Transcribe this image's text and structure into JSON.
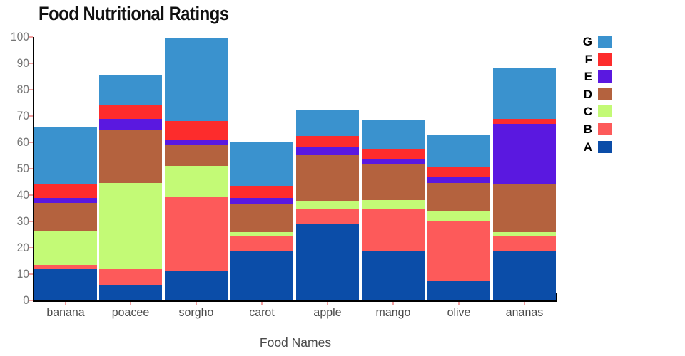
{
  "chart_data": {
    "type": "bar",
    "stacked": true,
    "title": "Food Nutritional Ratings",
    "xlabel": "Food Names",
    "ylabel": "",
    "ylim": [
      0,
      100
    ],
    "yticks": [
      0,
      10,
      20,
      30,
      40,
      50,
      60,
      70,
      80,
      90,
      100
    ],
    "grid": false,
    "legend_position": "right",
    "legend_order_top_to_bottom": [
      "G",
      "F",
      "E",
      "D",
      "C",
      "B",
      "A"
    ],
    "categories": [
      "banana",
      "poacee",
      "sorgho",
      "carot",
      "apple",
      "mango",
      "olive",
      "ananas"
    ],
    "series": [
      {
        "name": "A",
        "color": "#0b4da8",
        "values": [
          12,
          6,
          11,
          19,
          29,
          19,
          7.5,
          19
        ]
      },
      {
        "name": "B",
        "color": "#fd5a5a",
        "values": [
          1.5,
          6,
          28.5,
          5.5,
          6,
          15.5,
          22.5,
          5.5
        ]
      },
      {
        "name": "C",
        "color": "#c3fa76",
        "values": [
          13,
          32.5,
          11.5,
          1.5,
          2.5,
          3.5,
          4,
          1.5
        ]
      },
      {
        "name": "D",
        "color": "#b4623e",
        "values": [
          10.5,
          20,
          8,
          10.5,
          18,
          13.5,
          10.5,
          18
        ]
      },
      {
        "name": "E",
        "color": "#5a18e0",
        "values": [
          2,
          4.5,
          2,
          2.5,
          2.5,
          2,
          2.5,
          23
        ]
      },
      {
        "name": "F",
        "color": "#fd2c2c",
        "values": [
          5,
          5,
          7,
          4.5,
          4.5,
          4,
          3.5,
          2
        ]
      },
      {
        "name": "G",
        "color": "#3a92ce",
        "values": [
          22,
          11.5,
          31.5,
          16.5,
          10,
          11,
          12.5,
          19.5
        ]
      }
    ],
    "totals": [
      66,
      85.5,
      99.5,
      60,
      72.5,
      68.5,
      63,
      88.5
    ]
  },
  "colors": {
    "axis": "#000000",
    "tick_mark": "#f2a0a0",
    "ytick_label": "#767676",
    "xtick_label": "#4a4a4a",
    "title": "#111111"
  }
}
